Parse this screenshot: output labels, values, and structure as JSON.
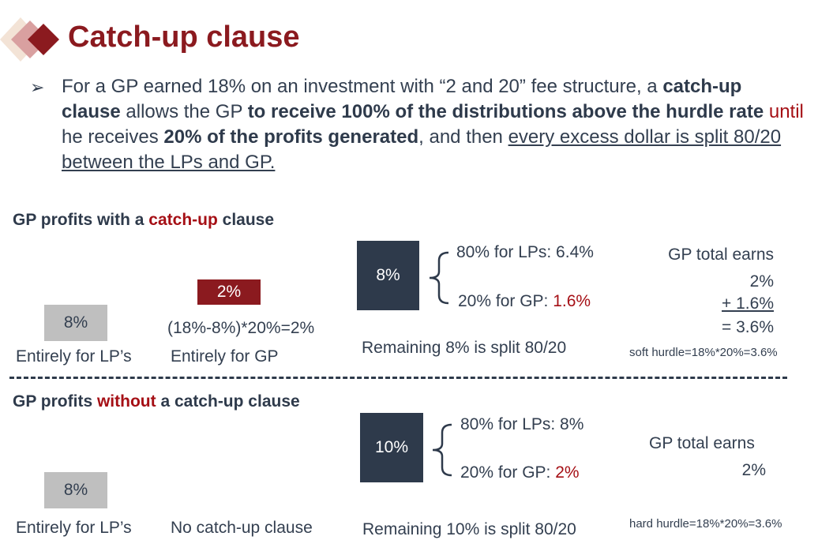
{
  "title": "Catch-up clause",
  "bullet": {
    "s1": "For a GP earned 18% on an investment with “2 and 20” fee structure, a ",
    "b1": "catch-up clause",
    "s2": " allows the GP ",
    "b2": "to receive 100% of the distributions above the hurdle rate",
    "r1": " until",
    "s3": " he receives ",
    "b3": "20% of the profits generated",
    "s4": ", and then ",
    "u1": "every excess dollar is split 80/20 between the LPs and GP."
  },
  "with_section": {
    "heading_pre": "GP profits with a ",
    "heading_red": "catch-up",
    "heading_post": " clause",
    "lp_box": "8%",
    "lp_label": "Entirely for LP’s",
    "gp_box": "2%",
    "gp_formula": "(18%-8%)*20%=2%",
    "gp_label": "Entirely for GP",
    "split_box": "8%",
    "split_lp": "80% for LPs: 6.4%",
    "split_gp_pre": "20% for GP: ",
    "split_gp_red": "1.6%",
    "split_label": "Remaining 8% is split 80/20",
    "total_title": "GP total earns",
    "total_line1": "2%",
    "total_line2": "+ 1.6%",
    "total_line3": "= 3.6%",
    "hurdle_note": "soft hurdle=18%*20%=3.6%"
  },
  "without_section": {
    "heading_pre": "GP profits ",
    "heading_red": "without",
    "heading_post": " a catch-up clause",
    "lp_box": "8%",
    "lp_label": "Entirely for LP’s",
    "gp_label": "No catch-up clause",
    "split_box": "10%",
    "split_lp": "80% for LPs: 8%",
    "split_gp_pre": "20% for GP: ",
    "split_gp_red": "2%",
    "split_label": "Remaining 10% is split 80/20",
    "total_title": "GP total earns",
    "total_line1": "2%",
    "hurdle_note": "hard hurdle=18%*20%=3.6%"
  },
  "colors": {
    "title": "#8b1a1f",
    "navy": "#2e3a4b",
    "grey_box": "#bfbfbf",
    "accent_red": "#a50f15"
  }
}
